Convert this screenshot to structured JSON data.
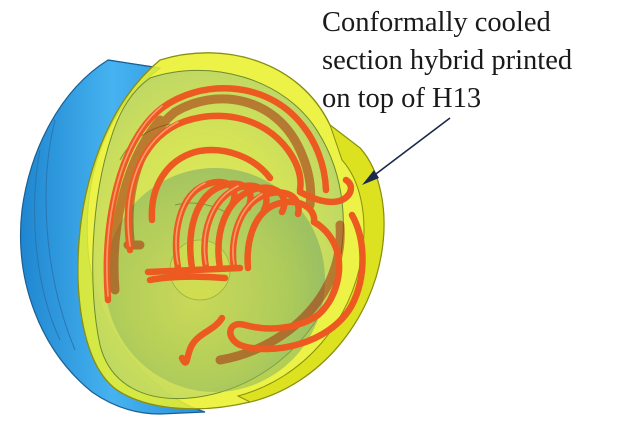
{
  "annotation": {
    "lines": [
      "Conformally cooled",
      "section hybrid printed",
      "on top of H13"
    ]
  },
  "colors": {
    "base_plate": "#3aa6e6",
    "base_plate_dark": "#1f7fc4",
    "printed_section": "#e8ee2a",
    "printed_section_inner": "#c9d94a",
    "cooling_channel": "#e8501c",
    "arrow": "#1b2a4a"
  }
}
